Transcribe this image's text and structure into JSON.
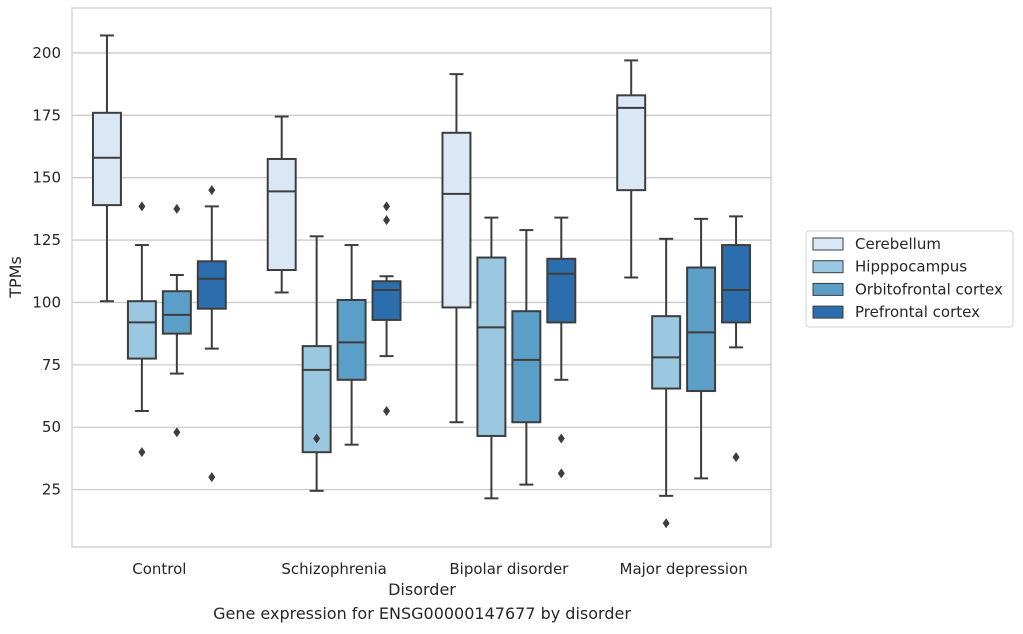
{
  "chart_data": {
    "type": "box",
    "xlabel": "Disorder",
    "ylabel": "TPMs",
    "caption": "Gene expression for ENSG00000147677 by disorder",
    "ylim": [
      2,
      218
    ],
    "yticks": [
      25,
      50,
      75,
      100,
      125,
      150,
      175,
      200
    ],
    "grid": true,
    "legend_position": "right",
    "categories": [
      "Control",
      "Schizophrenia",
      "Bipolar disorder",
      "Major depression"
    ],
    "series": [
      {
        "name": "Cerebellum",
        "color": "#dae8f5",
        "boxes": [
          {
            "whisker_low": 100.5,
            "q1": 139,
            "median": 158,
            "q3": 176,
            "whisker_high": 207,
            "outliers": []
          },
          {
            "whisker_low": 104,
            "q1": 113,
            "median": 144.5,
            "q3": 157.5,
            "whisker_high": 174.5,
            "outliers": []
          },
          {
            "whisker_low": 52,
            "q1": 98,
            "median": 143.5,
            "q3": 168,
            "whisker_high": 191.5,
            "outliers": []
          },
          {
            "whisker_low": 110,
            "q1": 145,
            "median": 178,
            "q3": 183,
            "whisker_high": 197,
            "outliers": []
          }
        ]
      },
      {
        "name": "Hipppocampus",
        "color": "#9ac8e1",
        "boxes": [
          {
            "whisker_low": 56.5,
            "q1": 77.5,
            "median": 92,
            "q3": 100.5,
            "whisker_high": 123,
            "outliers": [
              40,
              138.5
            ]
          },
          {
            "whisker_low": 24.5,
            "q1": 40,
            "median": 73,
            "q3": 82.5,
            "whisker_high": 126.5,
            "outliers": [
              45.5
            ]
          },
          {
            "whisker_low": 21.5,
            "q1": 46.5,
            "median": 90,
            "q3": 118,
            "whisker_high": 134,
            "outliers": []
          },
          {
            "whisker_low": 22.5,
            "q1": 65.5,
            "median": 78,
            "q3": 94.5,
            "whisker_high": 125.5,
            "outliers": [
              11.5
            ]
          }
        ]
      },
      {
        "name": "Orbitofrontal cortex",
        "color": "#5b9fc9",
        "boxes": [
          {
            "whisker_low": 71.5,
            "q1": 87.5,
            "median": 95,
            "q3": 104.5,
            "whisker_high": 111,
            "outliers": [
              48,
              137.5
            ]
          },
          {
            "whisker_low": 43,
            "q1": 69,
            "median": 84,
            "q3": 101,
            "whisker_high": 123,
            "outliers": []
          },
          {
            "whisker_low": 27,
            "q1": 52,
            "median": 77,
            "q3": 96.5,
            "whisker_high": 129,
            "outliers": []
          },
          {
            "whisker_low": 29.5,
            "q1": 64.5,
            "median": 88,
            "q3": 114,
            "whisker_high": 133.5,
            "outliers": []
          }
        ]
      },
      {
        "name": "Prefrontal cortex",
        "color": "#2c6ead",
        "boxes": [
          {
            "whisker_low": 81.5,
            "q1": 97.5,
            "median": 109.5,
            "q3": 116.5,
            "whisker_high": 138.5,
            "outliers": [
              30,
              145
            ]
          },
          {
            "whisker_low": 78.5,
            "q1": 93,
            "median": 105,
            "q3": 108.5,
            "whisker_high": 110.5,
            "outliers": [
              56.5,
              133,
              138.5
            ]
          },
          {
            "whisker_low": 69,
            "q1": 92,
            "median": 111.5,
            "q3": 117.5,
            "whisker_high": 134,
            "outliers": [
              31.5,
              45.5
            ]
          },
          {
            "whisker_low": 82,
            "q1": 92,
            "median": 105,
            "q3": 123,
            "whisker_high": 134.5,
            "outliers": [
              38
            ]
          }
        ]
      }
    ]
  }
}
